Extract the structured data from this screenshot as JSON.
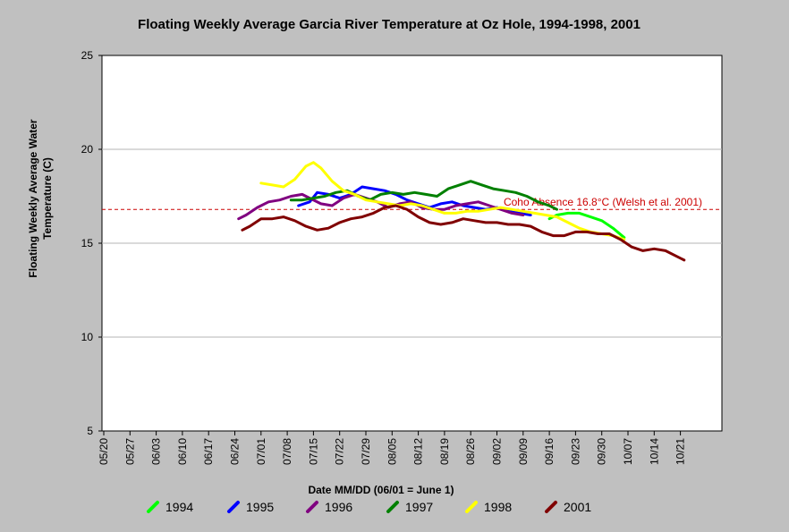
{
  "chart_data": {
    "type": "line",
    "title": "Floating Weekly Average Garcia River Temperature at Oz Hole, 1994-1998, 2001",
    "xlabel": "Date MM/DD (06/01 = June 1)",
    "ylabel_line1": "Floating Weekly Average Water",
    "ylabel_line2": "Temperature (C)",
    "ylim": [
      5,
      25
    ],
    "yticks": [
      "5",
      "10",
      "15",
      "20",
      "25"
    ],
    "xticks": [
      "05/20",
      "05/27",
      "06/03",
      "06/10",
      "06/17",
      "06/24",
      "07/01",
      "07/08",
      "07/15",
      "07/22",
      "07/29",
      "08/05",
      "08/12",
      "08/19",
      "08/26",
      "09/02",
      "09/09",
      "09/16",
      "09/23",
      "09/30",
      "10/07",
      "10/14",
      "10/21"
    ],
    "grid": true,
    "legend_position": "bottom",
    "reference_line": {
      "value": 16.8,
      "label": "Coho Absence 16.8°C (Welsh et al. 2001)",
      "color": "#cc0000"
    },
    "series": [
      {
        "name": "1994",
        "color": "#00ff00",
        "x": [
          "09/16",
          "09/18",
          "09/21",
          "09/24",
          "09/27",
          "09/30",
          "10/03",
          "10/06"
        ],
        "y": [
          16.3,
          16.5,
          16.6,
          16.6,
          16.4,
          16.2,
          15.8,
          15.3
        ]
      },
      {
        "name": "1995",
        "color": "#0000ff",
        "x": [
          "07/11",
          "07/14",
          "07/16",
          "07/19",
          "07/22",
          "07/25",
          "07/28",
          "07/31",
          "08/03",
          "08/06",
          "08/09",
          "08/12",
          "08/15",
          "08/18",
          "08/21",
          "08/24",
          "08/27",
          "08/30",
          "09/02",
          "09/05",
          "09/08",
          "09/11"
        ],
        "y": [
          17.0,
          17.2,
          17.7,
          17.6,
          17.4,
          17.6,
          18.0,
          17.9,
          17.8,
          17.6,
          17.3,
          17.1,
          16.9,
          17.1,
          17.2,
          17.0,
          16.9,
          16.8,
          16.9,
          16.7,
          16.6,
          16.5
        ]
      },
      {
        "name": "1996",
        "color": "#800080",
        "x": [
          "06/25",
          "06/27",
          "06/30",
          "07/03",
          "07/06",
          "07/09",
          "07/12",
          "07/14",
          "07/17",
          "07/20",
          "07/23",
          "07/26",
          "07/29",
          "08/01",
          "08/04",
          "08/07",
          "08/10",
          "08/13",
          "08/16",
          "08/19",
          "08/22",
          "08/25",
          "08/28",
          "08/31",
          "09/03",
          "09/06",
          "09/09"
        ],
        "y": [
          16.3,
          16.5,
          16.9,
          17.2,
          17.3,
          17.5,
          17.6,
          17.4,
          17.1,
          17.0,
          17.4,
          17.6,
          17.4,
          17.2,
          16.9,
          17.1,
          17.2,
          16.9,
          16.8,
          16.8,
          17.0,
          17.1,
          17.2,
          17.0,
          16.8,
          16.6,
          16.5
        ]
      },
      {
        "name": "1997",
        "color": "#008000",
        "x": [
          "07/09",
          "07/12",
          "07/15",
          "07/18",
          "07/21",
          "07/24",
          "07/27",
          "07/30",
          "08/02",
          "08/05",
          "08/08",
          "08/11",
          "08/14",
          "08/17",
          "08/20",
          "08/23",
          "08/26",
          "08/29",
          "09/01",
          "09/04",
          "09/07",
          "09/10",
          "09/13",
          "09/16",
          "09/18"
        ],
        "y": [
          17.3,
          17.3,
          17.4,
          17.5,
          17.7,
          17.8,
          17.5,
          17.3,
          17.6,
          17.7,
          17.6,
          17.7,
          17.6,
          17.5,
          17.9,
          18.1,
          18.3,
          18.1,
          17.9,
          17.8,
          17.7,
          17.5,
          17.2,
          17.0,
          16.8
        ]
      },
      {
        "name": "1998",
        "color": "#ffff00",
        "x": [
          "07/01",
          "07/04",
          "07/07",
          "07/10",
          "07/13",
          "07/15",
          "07/17",
          "07/20",
          "07/23",
          "07/26",
          "07/29",
          "08/01",
          "08/04",
          "08/07",
          "08/10",
          "08/13",
          "08/16",
          "08/19",
          "08/22",
          "08/25",
          "08/28",
          "08/31",
          "09/03",
          "09/06",
          "09/09",
          "09/12",
          "09/15",
          "09/18",
          "09/21",
          "09/24",
          "09/27",
          "09/30",
          "10/03",
          "10/06"
        ],
        "y": [
          18.2,
          18.1,
          18.0,
          18.4,
          19.1,
          19.3,
          19.0,
          18.3,
          17.8,
          17.6,
          17.3,
          17.2,
          17.1,
          17.0,
          17.1,
          17.0,
          16.8,
          16.6,
          16.6,
          16.7,
          16.7,
          16.8,
          16.9,
          16.8,
          16.7,
          16.6,
          16.5,
          16.4,
          16.1,
          15.8,
          15.6,
          15.5,
          15.4,
          15.2
        ]
      },
      {
        "name": "2001",
        "color": "#800000",
        "x": [
          "06/26",
          "06/28",
          "07/01",
          "07/04",
          "07/07",
          "07/10",
          "07/13",
          "07/16",
          "07/19",
          "07/22",
          "07/25",
          "07/28",
          "07/31",
          "08/03",
          "08/06",
          "08/09",
          "08/12",
          "08/15",
          "08/18",
          "08/21",
          "08/24",
          "08/27",
          "08/30",
          "09/02",
          "09/05",
          "09/08",
          "09/11",
          "09/14",
          "09/17",
          "09/20",
          "09/23",
          "09/26",
          "09/29",
          "10/02",
          "10/05",
          "10/08",
          "10/11",
          "10/14",
          "10/17",
          "10/20",
          "10/22"
        ],
        "y": [
          15.7,
          15.9,
          16.3,
          16.3,
          16.4,
          16.2,
          15.9,
          15.7,
          15.8,
          16.1,
          16.3,
          16.4,
          16.6,
          16.9,
          17.0,
          16.8,
          16.4,
          16.1,
          16.0,
          16.1,
          16.3,
          16.2,
          16.1,
          16.1,
          16.0,
          16.0,
          15.9,
          15.6,
          15.4,
          15.4,
          15.6,
          15.6,
          15.5,
          15.5,
          15.2,
          14.8,
          14.6,
          14.7,
          14.6,
          14.3,
          14.1
        ]
      }
    ]
  }
}
